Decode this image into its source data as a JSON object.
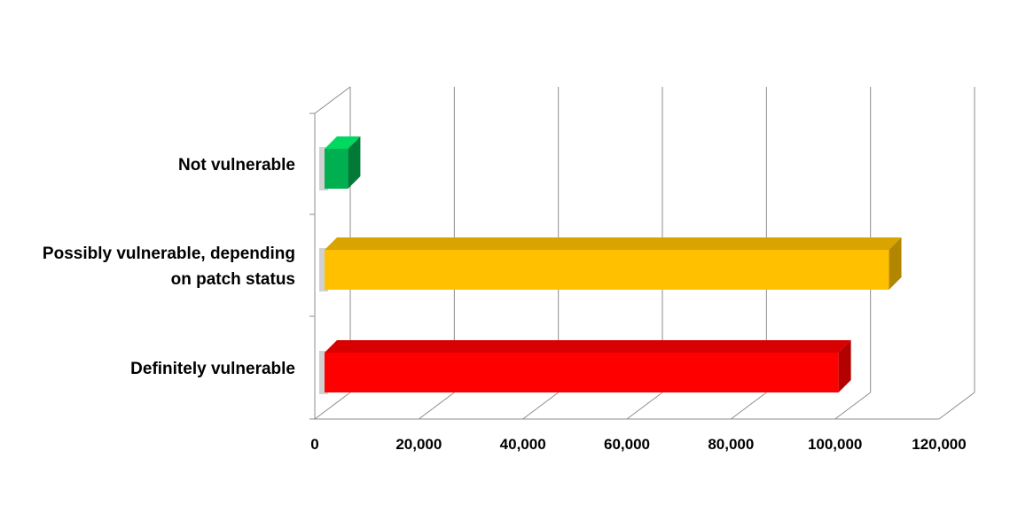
{
  "chart_data": {
    "type": "bar",
    "orientation": "horizontal",
    "style": "3d",
    "categories": [
      "Not vulnerable",
      "Possibly vulnerable, depending on patch status",
      "Definitely vulnerable"
    ],
    "category_lines": [
      [
        "Not vulnerable"
      ],
      [
        "Possibly vulnerable, depending",
        "on patch status"
      ],
      [
        "Definitely vulnerable"
      ]
    ],
    "values": [
      4500,
      108500,
      98800
    ],
    "colors": [
      "#00b050",
      "#ffc000",
      "#ff0000"
    ],
    "side_colors": [
      "#007a36",
      "#b38600",
      "#b30000"
    ],
    "top_colors": [
      "#00d860",
      "#d9a300",
      "#d80000"
    ],
    "xlim": [
      0,
      120000
    ],
    "xticks": [
      0,
      20000,
      40000,
      60000,
      80000,
      100000,
      120000
    ],
    "xtick_labels": [
      "0",
      "20,000",
      "40,000",
      "60,000",
      "80,000",
      "100,000",
      "120,000"
    ],
    "grid": true,
    "legend": false
  }
}
